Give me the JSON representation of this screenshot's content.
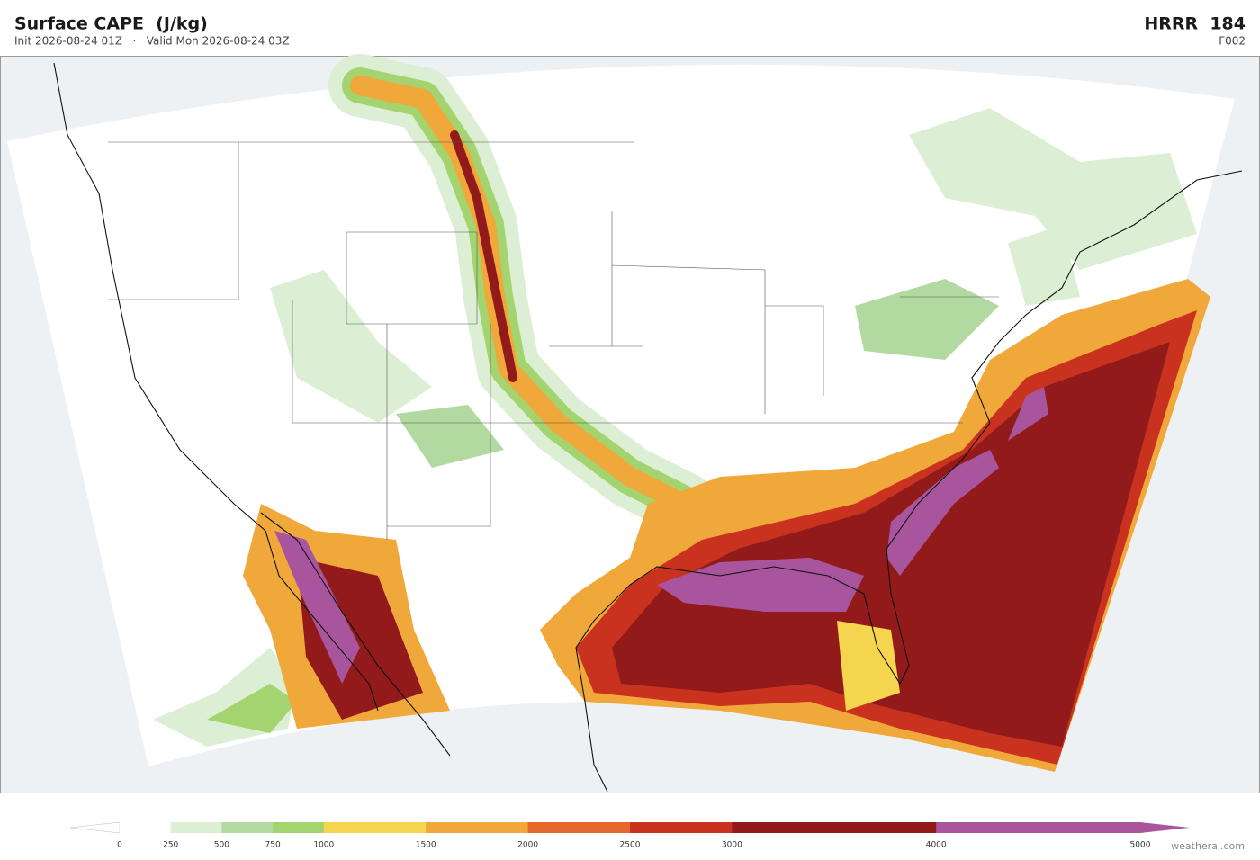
{
  "header": {
    "title": "Surface CAPE  (J/kg)",
    "subtitle": "Init 2026-08-24 01Z   ·   Valid Mon 2026-08-24 03Z",
    "model": "HRRR  184",
    "forecast_hour": "F002"
  },
  "colorbar": {
    "ticks": [
      0,
      250,
      500,
      750,
      1000,
      1500,
      2000,
      2500,
      3000,
      4000,
      5000
    ],
    "colors": [
      "#ffffff",
      "#dcefd4",
      "#b2d9a0",
      "#a3d470",
      "#f5d44e",
      "#f0a83a",
      "#e6672c",
      "#c8321e",
      "#921a1a",
      "#a8559e"
    ]
  },
  "credit": "weatherai.com"
}
